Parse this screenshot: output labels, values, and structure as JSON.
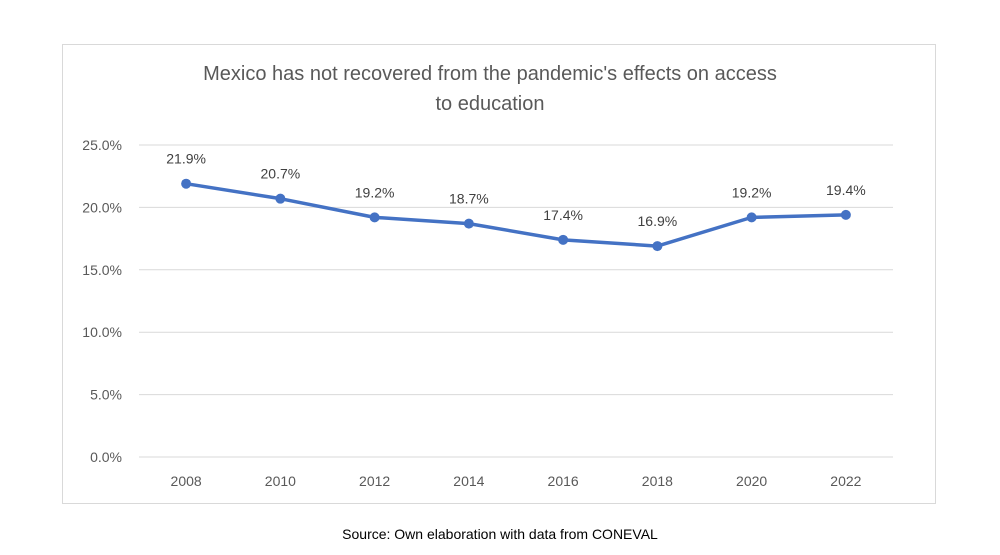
{
  "chart_data": {
    "type": "line",
    "title_lines": [
      "Mexico has not recovered from the pandemic's effects on access",
      "to education"
    ],
    "categories": [
      "2008",
      "2010",
      "2012",
      "2014",
      "2016",
      "2018",
      "2020",
      "2022"
    ],
    "values": [
      21.9,
      20.7,
      19.2,
      18.7,
      17.4,
      16.9,
      19.2,
      19.4
    ],
    "data_labels": [
      "21.9%",
      "20.7%",
      "19.2%",
      "18.7%",
      "17.4%",
      "16.9%",
      "19.2%",
      "19.4%"
    ],
    "y_ticks": [
      "0.0%",
      "5.0%",
      "10.0%",
      "15.0%",
      "20.0%",
      "25.0%"
    ],
    "ylim": [
      0,
      25
    ],
    "grid": true,
    "legend": "none",
    "line_color": "#4472C4"
  },
  "source": "Source: Own elaboration with data from CONEVAL"
}
